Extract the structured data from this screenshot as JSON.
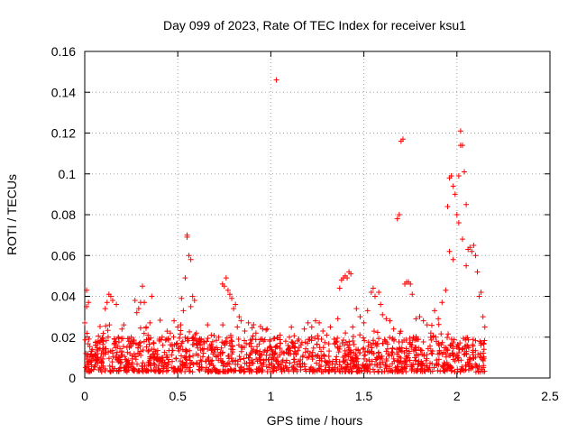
{
  "chart_data": {
    "type": "scatter",
    "title": "Day 099 of 2023, Rate Of TEC Index for receiver ksu1",
    "xlabel": "GPS time / hours",
    "ylabel": "ROTI / TECUs",
    "xlim": [
      0,
      2.5
    ],
    "ylim": [
      0,
      0.16
    ],
    "x_ticks": [
      "0",
      "0.5",
      "1",
      "1.5",
      "2",
      "2.5"
    ],
    "y_ticks": [
      "0",
      "0.02",
      "0.04",
      "0.06",
      "0.08",
      "0.1",
      "0.12",
      "0.14",
      "0.16"
    ],
    "grid": true,
    "marker": "+",
    "series": [
      {
        "color": "#ff0000",
        "points": [
          [
            0.0,
            0.027
          ],
          [
            0.01,
            0.035
          ],
          [
            0.01,
            0.043
          ],
          [
            0.02,
            0.037
          ],
          [
            0.03,
            0.008
          ],
          [
            0.04,
            0.014
          ],
          [
            0.06,
            0.016
          ],
          [
            0.07,
            0.01
          ],
          [
            0.09,
            0.012
          ],
          [
            0.1,
            0.018
          ],
          [
            0.11,
            0.034
          ],
          [
            0.12,
            0.037
          ],
          [
            0.13,
            0.041
          ],
          [
            0.14,
            0.04
          ],
          [
            0.15,
            0.038
          ],
          [
            0.16,
            0.019
          ],
          [
            0.17,
            0.036
          ],
          [
            0.18,
            0.02
          ],
          [
            0.2,
            0.024
          ],
          [
            0.21,
            0.026
          ],
          [
            0.22,
            0.009
          ],
          [
            0.24,
            0.015
          ],
          [
            0.25,
            0.02
          ],
          [
            0.26,
            0.017
          ],
          [
            0.27,
            0.038
          ],
          [
            0.28,
            0.032
          ],
          [
            0.29,
            0.034
          ],
          [
            0.3,
            0.037
          ],
          [
            0.31,
            0.045
          ],
          [
            0.32,
            0.037
          ],
          [
            0.33,
            0.025
          ],
          [
            0.34,
            0.021
          ],
          [
            0.35,
            0.027
          ],
          [
            0.36,
            0.04
          ],
          [
            0.38,
            0.013
          ],
          [
            0.4,
            0.019
          ],
          [
            0.42,
            0.016
          ],
          [
            0.44,
            0.01
          ],
          [
            0.46,
            0.022
          ],
          [
            0.48,
            0.028
          ],
          [
            0.5,
            0.025
          ],
          [
            0.52,
            0.039
          ],
          [
            0.53,
            0.033
          ],
          [
            0.54,
            0.049
          ],
          [
            0.55,
            0.07
          ],
          [
            0.55,
            0.069
          ],
          [
            0.56,
            0.06
          ],
          [
            0.57,
            0.058
          ],
          [
            0.57,
            0.035
          ],
          [
            0.58,
            0.04
          ],
          [
            0.59,
            0.038
          ],
          [
            0.6,
            0.022
          ],
          [
            0.62,
            0.016
          ],
          [
            0.64,
            0.018
          ],
          [
            0.66,
            0.026
          ],
          [
            0.68,
            0.021
          ],
          [
            0.7,
            0.014
          ],
          [
            0.72,
            0.02
          ],
          [
            0.74,
            0.046
          ],
          [
            0.75,
            0.045
          ],
          [
            0.76,
            0.049
          ],
          [
            0.77,
            0.043
          ],
          [
            0.78,
            0.041
          ],
          [
            0.79,
            0.039
          ],
          [
            0.8,
            0.034
          ],
          [
            0.81,
            0.036
          ],
          [
            0.82,
            0.025
          ],
          [
            0.83,
            0.03
          ],
          [
            0.84,
            0.028
          ],
          [
            0.86,
            0.023
          ],
          [
            0.88,
            0.027
          ],
          [
            0.9,
            0.019
          ],
          [
            0.92,
            0.022
          ],
          [
            0.94,
            0.012
          ],
          [
            0.96,
            0.018
          ],
          [
            0.98,
            0.024
          ],
          [
            1.0,
            0.015
          ],
          [
            1.02,
            0.012
          ],
          [
            1.03,
            0.146
          ],
          [
            1.05,
            0.021
          ],
          [
            1.08,
            0.018
          ],
          [
            1.1,
            0.02
          ],
          [
            1.12,
            0.017
          ],
          [
            1.15,
            0.019
          ],
          [
            1.18,
            0.024
          ],
          [
            1.2,
            0.027
          ],
          [
            1.22,
            0.025
          ],
          [
            1.24,
            0.028
          ],
          [
            1.26,
            0.027
          ],
          [
            1.28,
            0.023
          ],
          [
            1.3,
            0.021
          ],
          [
            1.32,
            0.025
          ],
          [
            1.34,
            0.019
          ],
          [
            1.36,
            0.029
          ],
          [
            1.37,
            0.044
          ],
          [
            1.38,
            0.048
          ],
          [
            1.39,
            0.049
          ],
          [
            1.4,
            0.05
          ],
          [
            1.41,
            0.049
          ],
          [
            1.42,
            0.052
          ],
          [
            1.43,
            0.051
          ],
          [
            1.44,
            0.025
          ],
          [
            1.46,
            0.034
          ],
          [
            1.48,
            0.03
          ],
          [
            1.5,
            0.027
          ],
          [
            1.52,
            0.033
          ],
          [
            1.54,
            0.042
          ],
          [
            1.55,
            0.044
          ],
          [
            1.56,
            0.04
          ],
          [
            1.58,
            0.042
          ],
          [
            1.59,
            0.036
          ],
          [
            1.6,
            0.031
          ],
          [
            1.62,
            0.029
          ],
          [
            1.64,
            0.028
          ],
          [
            1.66,
            0.024
          ],
          [
            1.68,
            0.078
          ],
          [
            1.69,
            0.08
          ],
          [
            1.7,
            0.116
          ],
          [
            1.71,
            0.117
          ],
          [
            1.72,
            0.046
          ],
          [
            1.73,
            0.047
          ],
          [
            1.74,
            0.047
          ],
          [
            1.75,
            0.046
          ],
          [
            1.76,
            0.041
          ],
          [
            1.78,
            0.029
          ],
          [
            1.8,
            0.03
          ],
          [
            1.82,
            0.028
          ],
          [
            1.84,
            0.026
          ],
          [
            1.86,
            0.022
          ],
          [
            1.88,
            0.033
          ],
          [
            1.9,
            0.029
          ],
          [
            1.92,
            0.037
          ],
          [
            1.94,
            0.043
          ],
          [
            1.95,
            0.084
          ],
          [
            1.96,
            0.098
          ],
          [
            1.97,
            0.099
          ],
          [
            1.98,
            0.094
          ],
          [
            1.99,
            0.09
          ],
          [
            2.0,
            0.08
          ],
          [
            2.01,
            0.099
          ],
          [
            2.02,
            0.114
          ],
          [
            2.02,
            0.121
          ],
          [
            2.03,
            0.114
          ],
          [
            2.04,
            0.101
          ],
          [
            2.05,
            0.085
          ],
          [
            2.06,
            0.063
          ],
          [
            2.07,
            0.064
          ],
          [
            2.08,
            0.062
          ],
          [
            2.09,
            0.065
          ],
          [
            2.1,
            0.06
          ],
          [
            2.11,
            0.052
          ],
          [
            2.12,
            0.04
          ],
          [
            2.13,
            0.042
          ],
          [
            2.14,
            0.03
          ],
          [
            2.15,
            0.025
          ],
          [
            1.96,
            0.062
          ],
          [
            1.98,
            0.058
          ],
          [
            2.01,
            0.076
          ],
          [
            2.03,
            0.068
          ],
          [
            2.05,
            0.055
          ]
        ]
      }
    ],
    "dense_band": {
      "x_range": [
        0.0,
        2.15
      ],
      "y_range": [
        0.003,
        0.02
      ],
      "note": "dense cluster of markers"
    }
  }
}
